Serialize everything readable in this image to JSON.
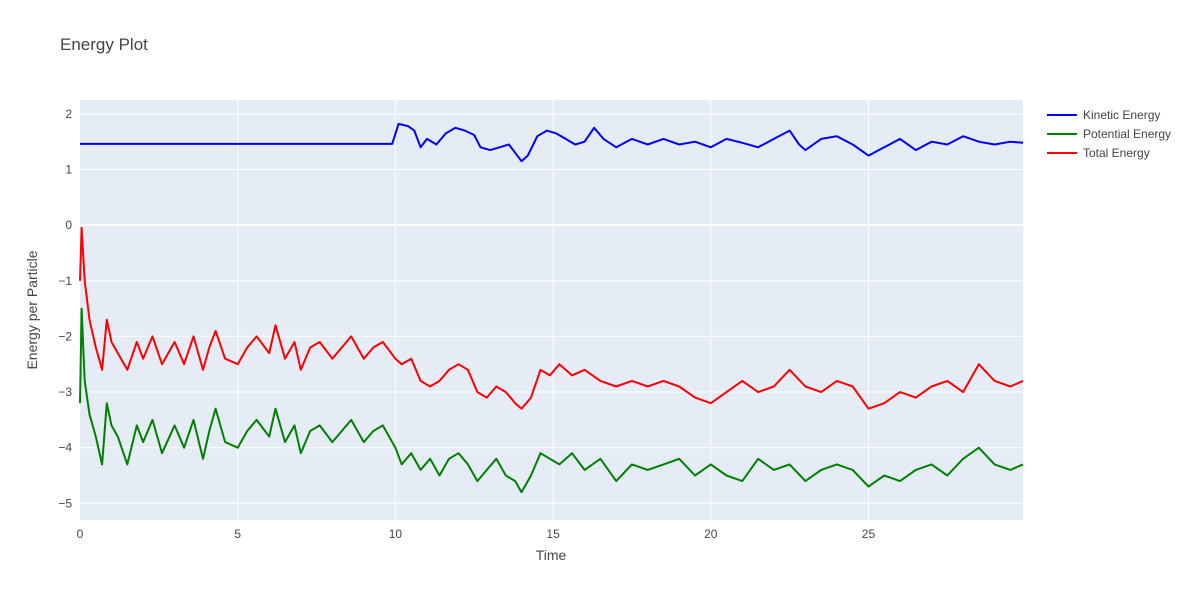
{
  "chart_data": {
    "type": "line",
    "title": "Energy Plot",
    "xlabel": "Time",
    "ylabel": "Energy per Particle",
    "xlim": [
      0,
      29.9
    ],
    "ylim": [
      -5.3,
      2.25
    ],
    "xticks": [
      0,
      5,
      10,
      15,
      20,
      25
    ],
    "yticks": [
      2,
      1,
      0,
      -1,
      -2,
      -3,
      -4,
      -5
    ],
    "ytick_labels": [
      "2",
      "1",
      "0",
      "−1",
      "−2",
      "−3",
      "−4",
      "−5"
    ],
    "grid": true,
    "legend_position": "top-right",
    "series": [
      {
        "name": "Kinetic Energy",
        "color": "#0000ff",
        "points": [
          [
            0,
            1.46
          ],
          [
            9.9,
            1.46
          ],
          [
            10.1,
            1.82
          ],
          [
            10.4,
            1.78
          ],
          [
            10.6,
            1.7
          ],
          [
            10.8,
            1.4
          ],
          [
            11.0,
            1.55
          ],
          [
            11.3,
            1.45
          ],
          [
            11.6,
            1.65
          ],
          [
            11.9,
            1.75
          ],
          [
            12.2,
            1.7
          ],
          [
            12.5,
            1.62
          ],
          [
            12.7,
            1.4
          ],
          [
            13.0,
            1.35
          ],
          [
            13.3,
            1.4
          ],
          [
            13.6,
            1.45
          ],
          [
            13.8,
            1.3
          ],
          [
            14.0,
            1.15
          ],
          [
            14.2,
            1.25
          ],
          [
            14.5,
            1.6
          ],
          [
            14.8,
            1.7
          ],
          [
            15.1,
            1.65
          ],
          [
            15.4,
            1.55
          ],
          [
            15.7,
            1.45
          ],
          [
            16.0,
            1.5
          ],
          [
            16.3,
            1.75
          ],
          [
            16.6,
            1.55
          ],
          [
            17.0,
            1.4
          ],
          [
            17.5,
            1.55
          ],
          [
            18.0,
            1.45
          ],
          [
            18.5,
            1.55
          ],
          [
            19.0,
            1.45
          ],
          [
            19.5,
            1.5
          ],
          [
            20.0,
            1.4
          ],
          [
            20.5,
            1.55
          ],
          [
            21.0,
            1.48
          ],
          [
            21.5,
            1.4
          ],
          [
            22.0,
            1.55
          ],
          [
            22.5,
            1.7
          ],
          [
            22.8,
            1.45
          ],
          [
            23.0,
            1.35
          ],
          [
            23.5,
            1.55
          ],
          [
            24.0,
            1.6
          ],
          [
            24.5,
            1.45
          ],
          [
            25.0,
            1.25
          ],
          [
            25.5,
            1.4
          ],
          [
            26.0,
            1.55
          ],
          [
            26.5,
            1.35
          ],
          [
            27.0,
            1.5
          ],
          [
            27.5,
            1.45
          ],
          [
            28.0,
            1.6
          ],
          [
            28.5,
            1.5
          ],
          [
            29.0,
            1.45
          ],
          [
            29.5,
            1.5
          ],
          [
            29.9,
            1.48
          ]
        ]
      },
      {
        "name": "Potential Energy",
        "color": "#008000",
        "points": [
          [
            0,
            -3.2
          ],
          [
            0.05,
            -1.5
          ],
          [
            0.15,
            -2.8
          ],
          [
            0.3,
            -3.4
          ],
          [
            0.5,
            -3.8
          ],
          [
            0.7,
            -4.3
          ],
          [
            0.85,
            -3.2
          ],
          [
            1.0,
            -3.6
          ],
          [
            1.2,
            -3.8
          ],
          [
            1.5,
            -4.3
          ],
          [
            1.8,
            -3.6
          ],
          [
            2.0,
            -3.9
          ],
          [
            2.3,
            -3.5
          ],
          [
            2.6,
            -4.1
          ],
          [
            3.0,
            -3.6
          ],
          [
            3.3,
            -4.0
          ],
          [
            3.6,
            -3.5
          ],
          [
            3.9,
            -4.2
          ],
          [
            4.1,
            -3.7
          ],
          [
            4.3,
            -3.3
          ],
          [
            4.6,
            -3.9
          ],
          [
            5.0,
            -4.0
          ],
          [
            5.3,
            -3.7
          ],
          [
            5.6,
            -3.5
          ],
          [
            6.0,
            -3.8
          ],
          [
            6.2,
            -3.3
          ],
          [
            6.5,
            -3.9
          ],
          [
            6.8,
            -3.6
          ],
          [
            7.0,
            -4.1
          ],
          [
            7.3,
            -3.7
          ],
          [
            7.6,
            -3.6
          ],
          [
            8.0,
            -3.9
          ],
          [
            8.3,
            -3.7
          ],
          [
            8.6,
            -3.5
          ],
          [
            9.0,
            -3.9
          ],
          [
            9.3,
            -3.7
          ],
          [
            9.6,
            -3.6
          ],
          [
            10.0,
            -4.0
          ],
          [
            10.2,
            -4.3
          ],
          [
            10.5,
            -4.1
          ],
          [
            10.8,
            -4.4
          ],
          [
            11.1,
            -4.2
          ],
          [
            11.4,
            -4.5
          ],
          [
            11.7,
            -4.2
          ],
          [
            12.0,
            -4.1
          ],
          [
            12.3,
            -4.3
          ],
          [
            12.6,
            -4.6
          ],
          [
            12.9,
            -4.4
          ],
          [
            13.2,
            -4.2
          ],
          [
            13.5,
            -4.5
          ],
          [
            13.8,
            -4.6
          ],
          [
            14.0,
            -4.8
          ],
          [
            14.3,
            -4.5
          ],
          [
            14.6,
            -4.1
          ],
          [
            14.9,
            -4.2
          ],
          [
            15.2,
            -4.3
          ],
          [
            15.6,
            -4.1
          ],
          [
            16.0,
            -4.4
          ],
          [
            16.5,
            -4.2
          ],
          [
            17.0,
            -4.6
          ],
          [
            17.5,
            -4.3
          ],
          [
            18.0,
            -4.4
          ],
          [
            18.5,
            -4.3
          ],
          [
            19.0,
            -4.2
          ],
          [
            19.5,
            -4.5
          ],
          [
            20.0,
            -4.3
          ],
          [
            20.5,
            -4.5
          ],
          [
            21.0,
            -4.6
          ],
          [
            21.5,
            -4.2
          ],
          [
            22.0,
            -4.4
          ],
          [
            22.5,
            -4.3
          ],
          [
            23.0,
            -4.6
          ],
          [
            23.5,
            -4.4
          ],
          [
            24.0,
            -4.3
          ],
          [
            24.5,
            -4.4
          ],
          [
            25.0,
            -4.7
          ],
          [
            25.5,
            -4.5
          ],
          [
            26.0,
            -4.6
          ],
          [
            26.5,
            -4.4
          ],
          [
            27.0,
            -4.3
          ],
          [
            27.5,
            -4.5
          ],
          [
            28.0,
            -4.2
          ],
          [
            28.5,
            -4.0
          ],
          [
            29.0,
            -4.3
          ],
          [
            29.5,
            -4.4
          ],
          [
            29.9,
            -4.3
          ]
        ]
      },
      {
        "name": "Total Energy",
        "color": "#ff0000",
        "points": [
          [
            0,
            -1.0
          ],
          [
            0.05,
            -0.05
          ],
          [
            0.15,
            -1.0
          ],
          [
            0.3,
            -1.7
          ],
          [
            0.5,
            -2.2
          ],
          [
            0.7,
            -2.6
          ],
          [
            0.85,
            -1.7
          ],
          [
            1.0,
            -2.1
          ],
          [
            1.2,
            -2.3
          ],
          [
            1.5,
            -2.6
          ],
          [
            1.8,
            -2.1
          ],
          [
            2.0,
            -2.4
          ],
          [
            2.3,
            -2.0
          ],
          [
            2.6,
            -2.5
          ],
          [
            3.0,
            -2.1
          ],
          [
            3.3,
            -2.5
          ],
          [
            3.6,
            -2.0
          ],
          [
            3.9,
            -2.6
          ],
          [
            4.1,
            -2.2
          ],
          [
            4.3,
            -1.9
          ],
          [
            4.6,
            -2.4
          ],
          [
            5.0,
            -2.5
          ],
          [
            5.3,
            -2.2
          ],
          [
            5.6,
            -2.0
          ],
          [
            6.0,
            -2.3
          ],
          [
            6.2,
            -1.8
          ],
          [
            6.5,
            -2.4
          ],
          [
            6.8,
            -2.1
          ],
          [
            7.0,
            -2.6
          ],
          [
            7.3,
            -2.2
          ],
          [
            7.6,
            -2.1
          ],
          [
            8.0,
            -2.4
          ],
          [
            8.3,
            -2.2
          ],
          [
            8.6,
            -2.0
          ],
          [
            9.0,
            -2.4
          ],
          [
            9.3,
            -2.2
          ],
          [
            9.6,
            -2.1
          ],
          [
            10.0,
            -2.4
          ],
          [
            10.2,
            -2.5
          ],
          [
            10.5,
            -2.4
          ],
          [
            10.8,
            -2.8
          ],
          [
            11.1,
            -2.9
          ],
          [
            11.4,
            -2.8
          ],
          [
            11.7,
            -2.6
          ],
          [
            12.0,
            -2.5
          ],
          [
            12.3,
            -2.6
          ],
          [
            12.6,
            -3.0
          ],
          [
            12.9,
            -3.1
          ],
          [
            13.2,
            -2.9
          ],
          [
            13.5,
            -3.0
          ],
          [
            13.8,
            -3.2
          ],
          [
            14.0,
            -3.3
          ],
          [
            14.3,
            -3.1
          ],
          [
            14.6,
            -2.6
          ],
          [
            14.9,
            -2.7
          ],
          [
            15.2,
            -2.5
          ],
          [
            15.6,
            -2.7
          ],
          [
            16.0,
            -2.6
          ],
          [
            16.5,
            -2.8
          ],
          [
            17.0,
            -2.9
          ],
          [
            17.5,
            -2.8
          ],
          [
            18.0,
            -2.9
          ],
          [
            18.5,
            -2.8
          ],
          [
            19.0,
            -2.9
          ],
          [
            19.5,
            -3.1
          ],
          [
            20.0,
            -3.2
          ],
          [
            20.5,
            -3.0
          ],
          [
            21.0,
            -2.8
          ],
          [
            21.5,
            -3.0
          ],
          [
            22.0,
            -2.9
          ],
          [
            22.5,
            -2.6
          ],
          [
            23.0,
            -2.9
          ],
          [
            23.5,
            -3.0
          ],
          [
            24.0,
            -2.8
          ],
          [
            24.5,
            -2.9
          ],
          [
            25.0,
            -3.3
          ],
          [
            25.5,
            -3.2
          ],
          [
            26.0,
            -3.0
          ],
          [
            26.5,
            -3.1
          ],
          [
            27.0,
            -2.9
          ],
          [
            27.5,
            -2.8
          ],
          [
            28.0,
            -3.0
          ],
          [
            28.5,
            -2.5
          ],
          [
            29.0,
            -2.8
          ],
          [
            29.5,
            -2.9
          ],
          [
            29.9,
            -2.8
          ]
        ]
      }
    ]
  }
}
